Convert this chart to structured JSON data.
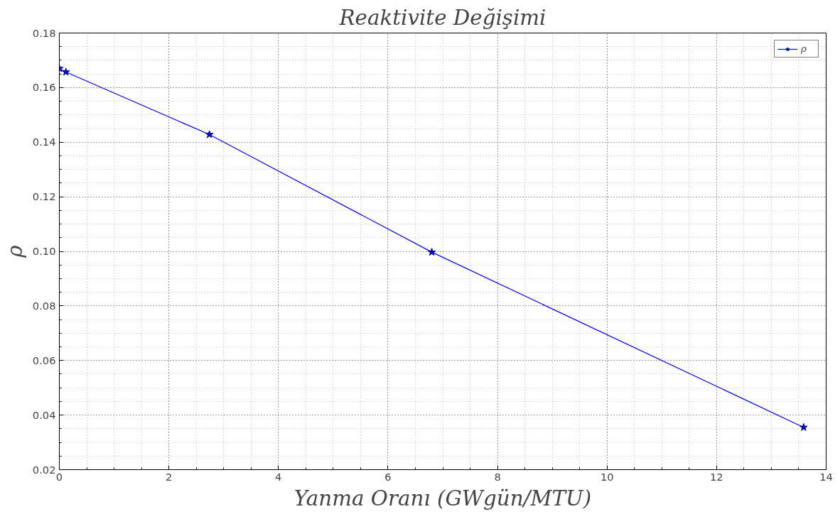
{
  "chart_data": {
    "type": "line",
    "title": "Reaktivite Değişimi",
    "xlabel": "Yanma Oranı (GWgün/MTU)",
    "ylabel": "ρ",
    "x": [
      0.0,
      0.12,
      2.74,
      6.8,
      13.59
    ],
    "series": [
      {
        "name": "ρ",
        "color": "#0000ff",
        "values": [
          0.167,
          0.1657,
          0.1428,
          0.0997,
          0.0355
        ]
      }
    ],
    "xlim": [
      0,
      14
    ],
    "xticks": [
      0,
      2,
      4,
      6,
      8,
      10,
      12,
      14
    ],
    "ylim": [
      0.02,
      0.18
    ],
    "yticks": [
      {
        "value": 0.02,
        "label": "0.02"
      },
      {
        "value": 0.04,
        "label": "0.04"
      },
      {
        "value": 0.06,
        "label": "0.06"
      },
      {
        "value": 0.08,
        "label": "0.08"
      },
      {
        "value": 0.1,
        "label": "0.10"
      },
      {
        "value": 0.12,
        "label": "0.12"
      },
      {
        "value": 0.14,
        "label": "0.14"
      },
      {
        "value": 0.16,
        "label": "0.16"
      },
      {
        "value": 0.18,
        "label": "0.18"
      }
    ],
    "grid": true,
    "legend": "top right",
    "marker": "star",
    "line_style": "solid"
  }
}
